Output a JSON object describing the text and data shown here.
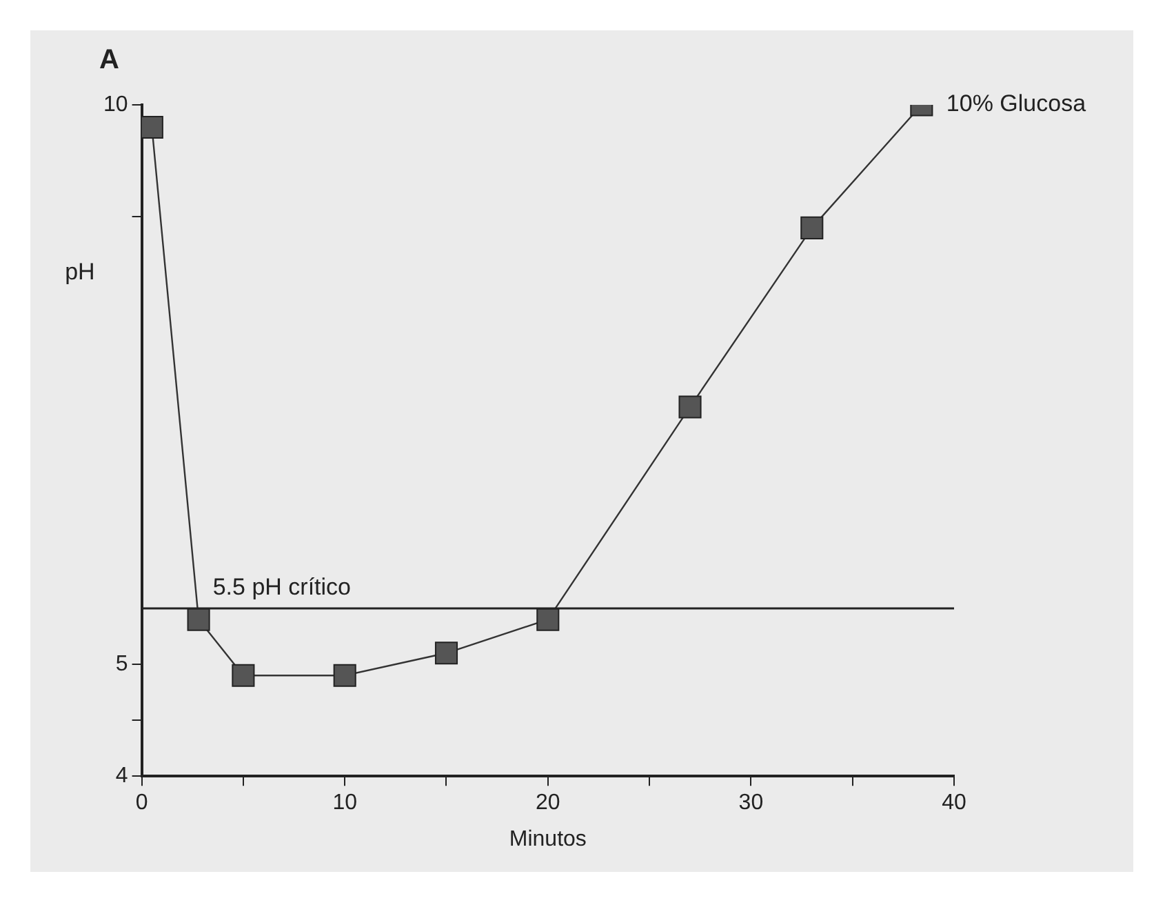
{
  "chart_data": {
    "type": "line",
    "title": "A",
    "xlabel": "Minutos",
    "ylabel": "pH",
    "x": [
      0.5,
      2.8,
      5,
      10,
      15,
      20,
      27,
      33,
      38.4
    ],
    "series": [
      {
        "name": "10% Glucosa",
        "color": "#555555",
        "values": [
          9.8,
          5.4,
          4.9,
          4.9,
          5.1,
          5.4,
          7.3,
          8.9,
          10
        ]
      }
    ],
    "xlim": [
      0,
      40
    ],
    "xticks": [
      0,
      {
        "value": 5,
        "label": null
      },
      10,
      {
        "value": 15,
        "label": null
      },
      20,
      {
        "value": 25,
        "label": null
      },
      30,
      {
        "value": 35,
        "label": null
      },
      40
    ],
    "ylim": [
      4,
      10
    ],
    "yticks": [
      4,
      {
        "value": 4.5,
        "label": null
      },
      5,
      {
        "value": 9,
        "label": null
      },
      10
    ],
    "ref_lines": [
      {
        "axis": "y",
        "value": 5.5,
        "label": "5.5 pH crítico",
        "color": "#222222"
      }
    ],
    "marker": "square",
    "line_style": "solid",
    "grid": false,
    "legend": false
  }
}
